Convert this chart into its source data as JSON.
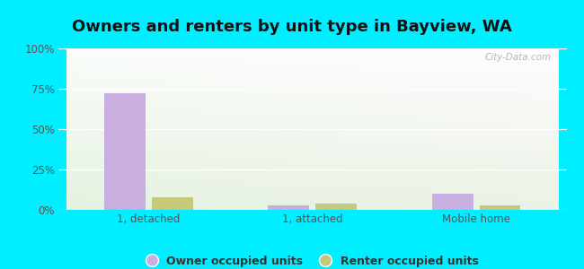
{
  "title": "Owners and renters by unit type in Bayview, WA",
  "categories": [
    "1, detached",
    "1, attached",
    "Mobile home"
  ],
  "owner_values": [
    72,
    3,
    10
  ],
  "renter_values": [
    8,
    4,
    3
  ],
  "owner_color": "#c9aee0",
  "renter_color": "#c8c87a",
  "ylim": [
    0,
    100
  ],
  "yticks": [
    0,
    25,
    50,
    75,
    100
  ],
  "ytick_labels": [
    "0%",
    "25%",
    "50%",
    "75%",
    "100%"
  ],
  "outer_bg": "#00eeff",
  "title_fontsize": 13,
  "legend_labels": [
    "Owner occupied units",
    "Renter occupied units"
  ],
  "watermark": "City-Data.com",
  "bar_width": 0.25,
  "bar_gap": 0.04
}
